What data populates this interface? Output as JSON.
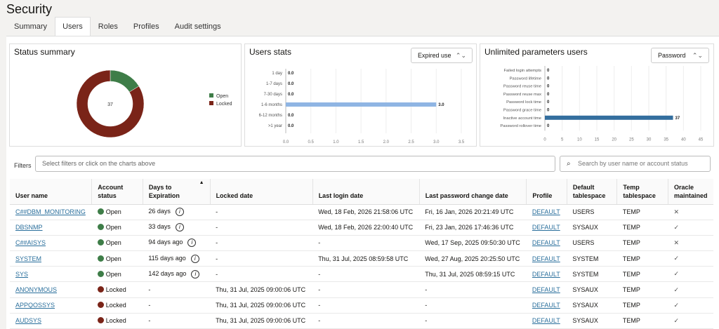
{
  "page": {
    "title": "Security"
  },
  "tabs": [
    {
      "label": "Summary"
    },
    {
      "label": "Users",
      "active": true
    },
    {
      "label": "Roles"
    },
    {
      "label": "Profiles"
    },
    {
      "label": "Audit settings"
    }
  ],
  "colors": {
    "open": "#3e7d48",
    "locked": "#7a2418",
    "users_bar": "#8fb5e3",
    "unlimited_bar": "#336e9e",
    "link": "#2a6f9c"
  },
  "status_summary": {
    "title": "Status summary",
    "center_label": "37"
  },
  "users_stats": {
    "title": "Users stats",
    "select_value": "Expired use"
  },
  "unlimited": {
    "title": "Unlimited parameters users",
    "select_value": "Password"
  },
  "chart_data": [
    {
      "type": "pie",
      "title": "Status summary",
      "categories": [
        "Open",
        "Locked"
      ],
      "values": [
        6,
        31
      ],
      "center": "37",
      "legend": "right"
    },
    {
      "type": "bar",
      "orientation": "horizontal",
      "title": "Users stats",
      "categories": [
        "1 day",
        "1-7 days",
        "7-30 days",
        "1-6 months",
        "6-12 months",
        ">1 year"
      ],
      "values": [
        0,
        0,
        0,
        3,
        0,
        0
      ],
      "data_labels": [
        "0.0",
        "0.0",
        "0.0",
        "3.0",
        "0.0",
        "0.0"
      ],
      "xlim": [
        0,
        3.5
      ],
      "xticks": [
        "0.0",
        "0.5",
        "1.0",
        "1.5",
        "2.0",
        "2.5",
        "3.0",
        "3.5"
      ],
      "grid": true
    },
    {
      "type": "bar",
      "orientation": "horizontal",
      "title": "Unlimited parameters users",
      "categories": [
        "Failed login attempts",
        "Password lifetime",
        "Password reuse time",
        "Password reuse max",
        "Password lock time",
        "Password grace time",
        "Inactive account time",
        "Password rollover time"
      ],
      "values": [
        0,
        0,
        0,
        0,
        0,
        0,
        37,
        0
      ],
      "data_labels": [
        "0",
        "0",
        "0",
        "0",
        "0",
        "0",
        "37",
        "0"
      ],
      "xlim": [
        0,
        45
      ],
      "xticks": [
        "0",
        "5",
        "10",
        "15",
        "20",
        "25",
        "30",
        "35",
        "40",
        "45"
      ],
      "grid": true
    }
  ],
  "filters": {
    "label": "Filters",
    "placeholder": "Select filters or click on the charts above",
    "search_placeholder": "Search by user name or account status"
  },
  "table": {
    "headers": [
      "User name",
      "Account status",
      "Days to Expiration",
      "Locked date",
      "Last login date",
      "Last password change date",
      "Profile",
      "Default tablespace",
      "Temp tablespace",
      "Oracle maintained"
    ],
    "rows": [
      {
        "user": "C##DBM_MONITORING",
        "status": "Open",
        "days": "26 days",
        "locked": "-",
        "login": "Wed, 18 Feb, 2026 21:58:06 UTC",
        "pwchange": "Fri, 16 Jan, 2026 20:21:49 UTC",
        "profile": "DEFAULT",
        "dts": "USERS",
        "tts": "TEMP",
        "oracle": "✕"
      },
      {
        "user": "DBSNMP",
        "status": "Open",
        "days": "33 days",
        "locked": "-",
        "login": "Wed, 18 Feb, 2026 22:00:40 UTC",
        "pwchange": "Fri, 23 Jan, 2026 17:46:36 UTC",
        "profile": "DEFAULT",
        "dts": "SYSAUX",
        "tts": "TEMP",
        "oracle": "✓"
      },
      {
        "user": "C##AISYS",
        "status": "Open",
        "days": "94 days ago",
        "locked": "-",
        "login": "-",
        "pwchange": "Wed, 17 Sep, 2025 09:50:30 UTC",
        "profile": "DEFAULT",
        "dts": "USERS",
        "tts": "TEMP",
        "oracle": "✕"
      },
      {
        "user": "SYSTEM",
        "status": "Open",
        "days": "115 days ago",
        "locked": "-",
        "login": "Thu, 31 Jul, 2025 08:59:58 UTC",
        "pwchange": "Wed, 27 Aug, 2025 20:25:50 UTC",
        "profile": "DEFAULT",
        "dts": "SYSTEM",
        "tts": "TEMP",
        "oracle": "✓"
      },
      {
        "user": "SYS",
        "status": "Open",
        "days": "142 days ago",
        "locked": "-",
        "login": "-",
        "pwchange": "Thu, 31 Jul, 2025 08:59:15 UTC",
        "profile": "DEFAULT",
        "dts": "SYSTEM",
        "tts": "TEMP",
        "oracle": "✓"
      },
      {
        "user": "ANONYMOUS",
        "status": "Locked",
        "days": "-",
        "locked": "Thu, 31 Jul, 2025 09:00:06 UTC",
        "login": "-",
        "pwchange": "-",
        "profile": "DEFAULT",
        "dts": "SYSAUX",
        "tts": "TEMP",
        "oracle": "✓"
      },
      {
        "user": "APPQOSSYS",
        "status": "Locked",
        "days": "-",
        "locked": "Thu, 31 Jul, 2025 09:00:06 UTC",
        "login": "-",
        "pwchange": "-",
        "profile": "DEFAULT",
        "dts": "SYSAUX",
        "tts": "TEMP",
        "oracle": "✓"
      },
      {
        "user": "AUDSYS",
        "status": "Locked",
        "days": "-",
        "locked": "Thu, 31 Jul, 2025 09:00:06 UTC",
        "login": "-",
        "pwchange": "-",
        "profile": "DEFAULT",
        "dts": "SYSAUX",
        "tts": "TEMP",
        "oracle": "✓"
      }
    ]
  }
}
